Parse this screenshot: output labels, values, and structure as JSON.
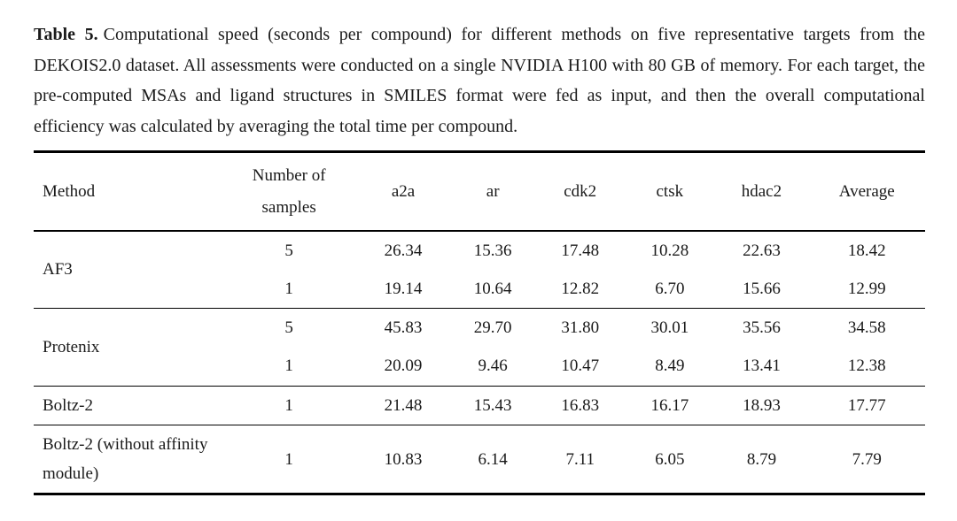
{
  "caption": {
    "label": "Table 5.",
    "text": "Computational speed (seconds per compound) for different methods on five representative targets from the DEKOIS2.0 dataset. All assessments were conducted on a single NVIDIA H100 with 80 GB of memory. For each target, the pre-computed MSAs and ligand structures in SMILES format were fed as input, and then the overall computational efficiency was calculated by averaging the total time per compound."
  },
  "table": {
    "header": {
      "method": "Method",
      "samples": "Number of samples",
      "cols": [
        "a2a",
        "ar",
        "cdk2",
        "ctsk",
        "hdac2",
        "Average"
      ]
    },
    "groups": [
      {
        "method": "AF3",
        "rows": [
          {
            "samples": "5",
            "values": [
              "26.34",
              "15.36",
              "17.48",
              "10.28",
              "22.63",
              "18.42"
            ]
          },
          {
            "samples": "1",
            "values": [
              "19.14",
              "10.64",
              "12.82",
              "6.70",
              "15.66",
              "12.99"
            ]
          }
        ]
      },
      {
        "method": "Protenix",
        "rows": [
          {
            "samples": "5",
            "values": [
              "45.83",
              "29.70",
              "31.80",
              "30.01",
              "35.56",
              "34.58"
            ]
          },
          {
            "samples": "1",
            "values": [
              "20.09",
              "9.46",
              "10.47",
              "8.49",
              "13.41",
              "12.38"
            ]
          }
        ]
      },
      {
        "method": "Boltz-2",
        "rows": [
          {
            "samples": "1",
            "values": [
              "21.48",
              "15.43",
              "16.83",
              "16.17",
              "18.93",
              "17.77"
            ]
          }
        ]
      },
      {
        "method": "Boltz-2 (without affinity module)",
        "rows": [
          {
            "samples": "1",
            "values": [
              "10.83",
              "6.14",
              "7.11",
              "6.05",
              "8.79",
              "7.79"
            ]
          }
        ]
      }
    ]
  }
}
